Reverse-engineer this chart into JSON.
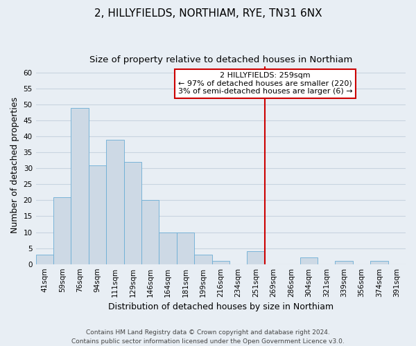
{
  "title": "2, HILLYFIELDS, NORTHIAM, RYE, TN31 6NX",
  "subtitle": "Size of property relative to detached houses in Northiam",
  "xlabel": "Distribution of detached houses by size in Northiam",
  "ylabel": "Number of detached properties",
  "bin_labels": [
    "41sqm",
    "59sqm",
    "76sqm",
    "94sqm",
    "111sqm",
    "129sqm",
    "146sqm",
    "164sqm",
    "181sqm",
    "199sqm",
    "216sqm",
    "234sqm",
    "251sqm",
    "269sqm",
    "286sqm",
    "304sqm",
    "321sqm",
    "339sqm",
    "356sqm",
    "374sqm",
    "391sqm"
  ],
  "bar_values": [
    3,
    21,
    49,
    31,
    39,
    32,
    20,
    10,
    10,
    3,
    1,
    0,
    4,
    0,
    0,
    2,
    0,
    1,
    0,
    1,
    0
  ],
  "bar_color": "#cdd9e5",
  "bar_edge_color": "#6aadd5",
  "vline_color": "#cc0000",
  "ylim": [
    0,
    62
  ],
  "yticks": [
    0,
    5,
    10,
    15,
    20,
    25,
    30,
    35,
    40,
    45,
    50,
    55,
    60
  ],
  "annotation_title": "2 HILLYFIELDS: 259sqm",
  "annotation_line1": "← 97% of detached houses are smaller (220)",
  "annotation_line2": "3% of semi-detached houses are larger (6) →",
  "footer_line1": "Contains HM Land Registry data © Crown copyright and database right 2024.",
  "footer_line2": "Contains public sector information licensed under the Open Government Licence v3.0.",
  "background_color": "#e8eef4",
  "grid_color": "#c8d4e0",
  "title_fontsize": 11,
  "subtitle_fontsize": 9.5,
  "axis_label_fontsize": 9,
  "tick_fontsize": 7.5,
  "annotation_fontsize": 8,
  "footer_fontsize": 6.5
}
